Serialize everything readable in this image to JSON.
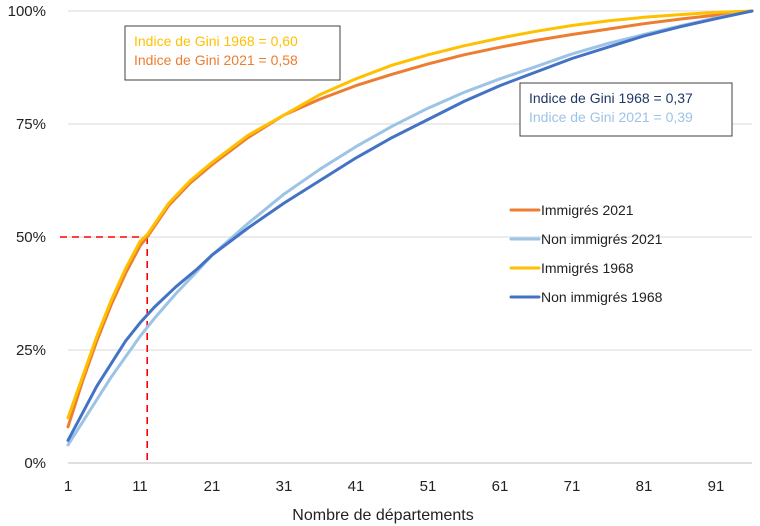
{
  "chart_data": {
    "type": "line",
    "title": "",
    "xlabel": "Nombre de départements",
    "ylabel": "",
    "xlim": [
      1,
      96
    ],
    "ylim": [
      0,
      100
    ],
    "x_ticks": [
      1,
      11,
      21,
      31,
      41,
      51,
      61,
      71,
      81,
      91
    ],
    "y_ticks": [
      0,
      25,
      50,
      75,
      100
    ],
    "y_tick_labels": [
      "0%",
      "25%",
      "50%",
      "75%",
      "100%"
    ],
    "grid": "horizontal",
    "legend_position": "right",
    "series": [
      {
        "name": "Immigrés 2021",
        "color": "#ED7D31",
        "width": 3,
        "points": [
          [
            1,
            8
          ],
          [
            3,
            18
          ],
          [
            5,
            27
          ],
          [
            7,
            35
          ],
          [
            9,
            42
          ],
          [
            11,
            48
          ],
          [
            12,
            50
          ],
          [
            15,
            57
          ],
          [
            18,
            62
          ],
          [
            21,
            66
          ],
          [
            26,
            72
          ],
          [
            31,
            77
          ],
          [
            36,
            80.5
          ],
          [
            41,
            83.5
          ],
          [
            46,
            86
          ],
          [
            51,
            88.3
          ],
          [
            56,
            90.3
          ],
          [
            61,
            92
          ],
          [
            66,
            93.5
          ],
          [
            71,
            94.8
          ],
          [
            76,
            96
          ],
          [
            81,
            97.2
          ],
          [
            86,
            98.2
          ],
          [
            91,
            99.1
          ],
          [
            96,
            100
          ]
        ]
      },
      {
        "name": "Non immigrés 2021",
        "color": "#9DC3E6",
        "width": 3,
        "points": [
          [
            1,
            4
          ],
          [
            3,
            9
          ],
          [
            5,
            14
          ],
          [
            7,
            19
          ],
          [
            9,
            23.5
          ],
          [
            11,
            28
          ],
          [
            13,
            32
          ],
          [
            16,
            37.5
          ],
          [
            19,
            42.5
          ],
          [
            21,
            46
          ],
          [
            26,
            53
          ],
          [
            31,
            59.5
          ],
          [
            36,
            65
          ],
          [
            41,
            70
          ],
          [
            46,
            74.5
          ],
          [
            51,
            78.5
          ],
          [
            56,
            82
          ],
          [
            61,
            85
          ],
          [
            66,
            87.7
          ],
          [
            71,
            90.5
          ],
          [
            76,
            92.8
          ],
          [
            81,
            94.8
          ],
          [
            86,
            96.7
          ],
          [
            91,
            98.5
          ],
          [
            96,
            100
          ]
        ]
      },
      {
        "name": "Immigrés 1968",
        "color": "#FFC000",
        "width": 3,
        "points": [
          [
            1,
            10
          ],
          [
            3,
            19
          ],
          [
            5,
            28
          ],
          [
            7,
            36
          ],
          [
            9,
            43
          ],
          [
            11,
            49
          ],
          [
            12,
            50.5
          ],
          [
            15,
            57.5
          ],
          [
            18,
            62.5
          ],
          [
            21,
            66.5
          ],
          [
            26,
            72.5
          ],
          [
            31,
            77
          ],
          [
            36,
            81.5
          ],
          [
            41,
            85
          ],
          [
            46,
            88
          ],
          [
            51,
            90.3
          ],
          [
            56,
            92.3
          ],
          [
            61,
            94
          ],
          [
            66,
            95.5
          ],
          [
            71,
            96.8
          ],
          [
            76,
            97.8
          ],
          [
            81,
            98.6
          ],
          [
            86,
            99.2
          ],
          [
            91,
            99.7
          ],
          [
            96,
            100
          ]
        ]
      },
      {
        "name": "Non immigrés 1968",
        "color": "#4472C4",
        "width": 3,
        "points": [
          [
            1,
            5
          ],
          [
            3,
            11
          ],
          [
            5,
            17
          ],
          [
            7,
            22
          ],
          [
            9,
            27
          ],
          [
            11,
            31
          ],
          [
            13,
            34.5
          ],
          [
            16,
            39
          ],
          [
            19,
            43
          ],
          [
            21,
            46
          ],
          [
            26,
            52
          ],
          [
            31,
            57.5
          ],
          [
            36,
            62.5
          ],
          [
            41,
            67.5
          ],
          [
            46,
            72
          ],
          [
            51,
            76
          ],
          [
            56,
            80
          ],
          [
            61,
            83.5
          ],
          [
            66,
            86.5
          ],
          [
            71,
            89.5
          ],
          [
            76,
            92
          ],
          [
            81,
            94.5
          ],
          [
            86,
            96.5
          ],
          [
            91,
            98.3
          ],
          [
            96,
            100
          ]
        ]
      }
    ],
    "reference_lines": [
      {
        "x": 12,
        "y": 50,
        "color": "#FF0000",
        "style": "dashed"
      }
    ],
    "annotations": [
      {
        "id": "gini-immigres",
        "lines": [
          {
            "text": "Indice de Gini 1968 = 0,60",
            "color": "#FFC000"
          },
          {
            "text": "Indice de Gini 2021 = 0,58",
            "color": "#ED7D31"
          }
        ]
      },
      {
        "id": "gini-non-immigres",
        "lines": [
          {
            "text": "Indice de Gini 1968 = 0,37",
            "color": "#1F3864"
          },
          {
            "text": "Indice de Gini 2021 = 0,39",
            "color": "#9DC3E6"
          }
        ]
      }
    ]
  }
}
